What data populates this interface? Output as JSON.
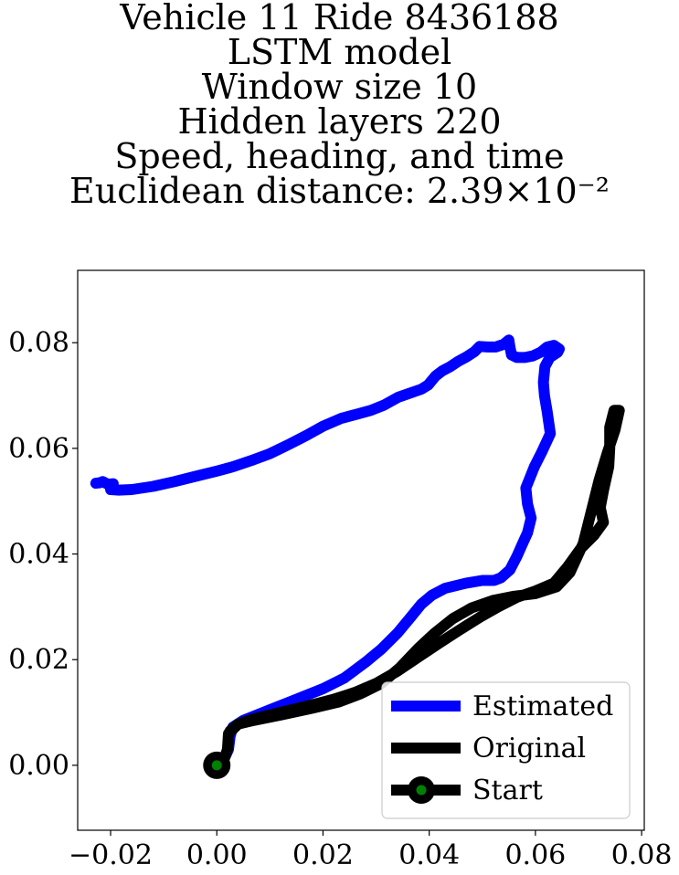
{
  "chart_data": {
    "type": "line",
    "title": [
      "Vehicle 11 Ride 8436188",
      "LSTM model",
      "Window size 10",
      "Hidden layers 220",
      "Speed, heading, and time",
      "Euclidean distance: 2.39×10⁻²"
    ],
    "xlabel": "",
    "ylabel": "",
    "xlim": [
      -0.0262,
      0.0805
    ],
    "ylim": [
      -0.0123,
      0.0937
    ],
    "xticks": [
      -0.02,
      0.0,
      0.02,
      0.04,
      0.06,
      0.08
    ],
    "xtick_labels": [
      "−0.02",
      "0.00",
      "0.02",
      "0.04",
      "0.06",
      "0.08"
    ],
    "yticks": [
      0.0,
      0.02,
      0.04,
      0.06,
      0.08
    ],
    "ytick_labels": [
      "0.00",
      "0.02",
      "0.04",
      "0.06",
      "0.08"
    ],
    "grid": false,
    "legend_position": "lower-right",
    "series": [
      {
        "name": "Estimated",
        "color": "#0000ff",
        "points": [
          [
            0.0,
            0.0
          ],
          [
            0.0015,
            0.0015
          ],
          [
            0.0022,
            0.003
          ],
          [
            0.0025,
            0.0055
          ],
          [
            0.003,
            0.0072
          ],
          [
            0.005,
            0.0085
          ],
          [
            0.01,
            0.0105
          ],
          [
            0.015,
            0.0125
          ],
          [
            0.02,
            0.0145
          ],
          [
            0.024,
            0.0165
          ],
          [
            0.028,
            0.0195
          ],
          [
            0.031,
            0.022
          ],
          [
            0.034,
            0.025
          ],
          [
            0.0365,
            0.028
          ],
          [
            0.0385,
            0.0305
          ],
          [
            0.0405,
            0.0322
          ],
          [
            0.043,
            0.0335
          ],
          [
            0.047,
            0.0345
          ],
          [
            0.05,
            0.035
          ],
          [
            0.0522,
            0.035
          ],
          [
            0.0535,
            0.0355
          ],
          [
            0.0552,
            0.037
          ],
          [
            0.0565,
            0.0395
          ],
          [
            0.0575,
            0.0418
          ],
          [
            0.0585,
            0.044
          ],
          [
            0.0592,
            0.0468
          ],
          [
            0.0585,
            0.0495
          ],
          [
            0.0582,
            0.0525
          ],
          [
            0.0598,
            0.0565
          ],
          [
            0.0613,
            0.0595
          ],
          [
            0.0628,
            0.0628
          ],
          [
            0.0622,
            0.067
          ],
          [
            0.0617,
            0.07
          ],
          [
            0.0615,
            0.0725
          ],
          [
            0.0618,
            0.0755
          ],
          [
            0.0627,
            0.0772
          ],
          [
            0.0642,
            0.0782
          ],
          [
            0.0645,
            0.0788
          ],
          [
            0.0635,
            0.0795
          ],
          [
            0.0622,
            0.0792
          ],
          [
            0.061,
            0.0782
          ],
          [
            0.0595,
            0.0775
          ],
          [
            0.058,
            0.0772
          ],
          [
            0.0565,
            0.0772
          ],
          [
            0.0555,
            0.0777
          ],
          [
            0.0552,
            0.0792
          ],
          [
            0.055,
            0.0805
          ],
          [
            0.054,
            0.0797
          ],
          [
            0.0525,
            0.0792
          ],
          [
            0.051,
            0.0792
          ],
          [
            0.0495,
            0.0793
          ],
          [
            0.0485,
            0.0783
          ],
          [
            0.047,
            0.0773
          ],
          [
            0.0455,
            0.0765
          ],
          [
            0.044,
            0.0755
          ],
          [
            0.0425,
            0.0747
          ],
          [
            0.0412,
            0.0737
          ],
          [
            0.0398,
            0.072
          ],
          [
            0.0385,
            0.0712
          ],
          [
            0.0365,
            0.0705
          ],
          [
            0.0342,
            0.0697
          ],
          [
            0.0315,
            0.0682
          ],
          [
            0.029,
            0.0672
          ],
          [
            0.0265,
            0.0665
          ],
          [
            0.0235,
            0.0657
          ],
          [
            0.02,
            0.0642
          ],
          [
            0.017,
            0.0625
          ],
          [
            0.0135,
            0.0607
          ],
          [
            0.01,
            0.059
          ],
          [
            0.0065,
            0.0577
          ],
          [
            0.003,
            0.0565
          ],
          [
            0.0,
            0.0557
          ],
          [
            -0.004,
            0.0547
          ],
          [
            -0.008,
            0.0537
          ],
          [
            -0.012,
            0.0528
          ],
          [
            -0.016,
            0.0522
          ],
          [
            -0.0185,
            0.0521
          ],
          [
            -0.02,
            0.0522
          ],
          [
            -0.0195,
            0.0533
          ],
          [
            -0.0205,
            0.0532
          ],
          [
            -0.0215,
            0.0537
          ],
          [
            -0.022,
            0.0535
          ],
          [
            -0.0228,
            0.0534
          ]
        ]
      },
      {
        "name": "Original",
        "color": "#000000",
        "points": [
          [
            0.0,
            0.0
          ],
          [
            0.0015,
            0.0015
          ],
          [
            0.002,
            0.003
          ],
          [
            0.0022,
            0.006
          ],
          [
            0.004,
            0.0078
          ],
          [
            0.007,
            0.0085
          ],
          [
            0.012,
            0.0095
          ],
          [
            0.018,
            0.0108
          ],
          [
            0.023,
            0.012
          ],
          [
            0.027,
            0.0135
          ],
          [
            0.031,
            0.0155
          ],
          [
            0.0345,
            0.0185
          ],
          [
            0.038,
            0.0222
          ],
          [
            0.041,
            0.025
          ],
          [
            0.0445,
            0.0278
          ],
          [
            0.048,
            0.0298
          ],
          [
            0.052,
            0.0312
          ],
          [
            0.056,
            0.032
          ],
          [
            0.06,
            0.0325
          ],
          [
            0.064,
            0.0338
          ],
          [
            0.0665,
            0.0365
          ],
          [
            0.069,
            0.042
          ],
          [
            0.0705,
            0.048
          ],
          [
            0.072,
            0.054
          ],
          [
            0.0735,
            0.059
          ],
          [
            0.075,
            0.0635
          ],
          [
            0.0758,
            0.0672
          ],
          [
            0.0748,
            0.0672
          ],
          [
            0.074,
            0.064
          ],
          [
            0.074,
            0.06
          ],
          [
            0.0738,
            0.0565
          ],
          [
            0.0728,
            0.052
          ],
          [
            0.0722,
            0.0488
          ],
          [
            0.0728,
            0.046
          ],
          [
            0.071,
            0.0435
          ],
          [
            0.0685,
            0.041
          ],
          [
            0.066,
            0.0375
          ],
          [
            0.0635,
            0.0345
          ],
          [
            0.06,
            0.033
          ],
          [
            0.0565,
            0.0318
          ],
          [
            0.053,
            0.03
          ],
          [
            0.0495,
            0.028
          ],
          [
            0.046,
            0.0258
          ],
          [
            0.042,
            0.0232
          ],
          [
            0.038,
            0.0205
          ],
          [
            0.034,
            0.0178
          ],
          [
            0.03,
            0.0155
          ],
          [
            0.026,
            0.0138
          ],
          [
            0.022,
            0.0125
          ],
          [
            0.017,
            0.0112
          ],
          [
            0.012,
            0.01
          ],
          [
            0.007,
            0.0088
          ],
          [
            0.004,
            0.0078
          ],
          [
            0.0025,
            0.0065
          ]
        ]
      }
    ],
    "markers": [
      {
        "name": "Start",
        "x": 0.0,
        "y": 0.0,
        "edge_color": "#000000",
        "face_color": "#008000"
      }
    ],
    "legend": [
      {
        "label": "Estimated",
        "color": "#0000ff",
        "style": "line"
      },
      {
        "label": "Original",
        "color": "#000000",
        "style": "line"
      },
      {
        "label": "Start",
        "color": "#000000",
        "style": "line-marker",
        "marker_face": "#008000"
      }
    ]
  }
}
